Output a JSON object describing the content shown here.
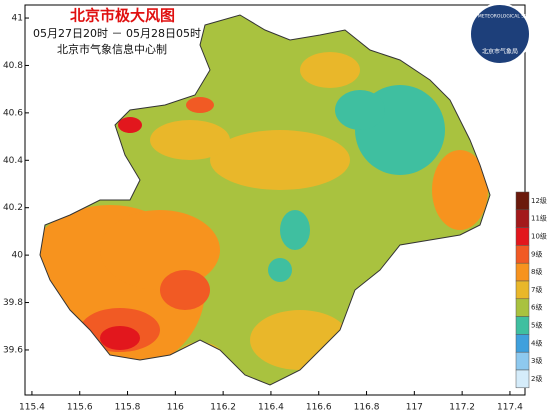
{
  "map": {
    "title": "北京市极大风图",
    "subtitle": "05月27日20时 － 05月28日05时",
    "producer": "北京市气象信息中心制",
    "logo_text": "BEIJING METEOROLOGICAL SERVICE",
    "logo_name": "北京市气象局",
    "xlim": [
      115.371,
      117.463
    ],
    "ylim": [
      39.41,
      41.055
    ],
    "xticks": [
      115.4,
      115.6,
      115.8,
      116,
      116.2,
      116.4,
      116.6,
      116.8,
      117,
      117.2,
      117.4
    ],
    "yticks": [
      39.6,
      39.8,
      40,
      40.2,
      40.4,
      40.6,
      40.8,
      41
    ],
    "legend": [
      {
        "label": "12级",
        "color": "#6b1a0c"
      },
      {
        "label": "11级",
        "color": "#a3191b"
      },
      {
        "label": "10级",
        "color": "#e2171d"
      },
      {
        "label": "9级",
        "color": "#f15a24"
      },
      {
        "label": "8级",
        "color": "#f7931e"
      },
      {
        "label": "7级",
        "color": "#e9b72a"
      },
      {
        "label": "6级",
        "color": "#a9c23f"
      },
      {
        "label": "5级",
        "color": "#3fbfa0"
      },
      {
        "label": "4级",
        "color": "#3fa0dd"
      },
      {
        "label": "3级",
        "color": "#8ec9ef"
      },
      {
        "label": "2级",
        "color": "#d5ecfa"
      }
    ]
  }
}
